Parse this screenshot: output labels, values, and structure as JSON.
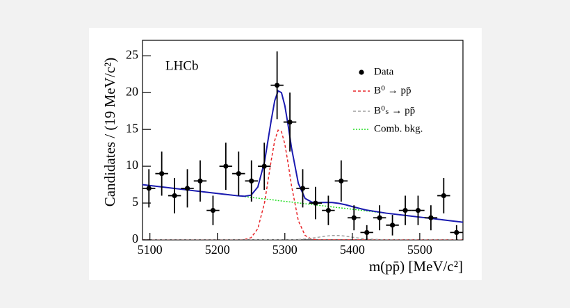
{
  "chart_data": {
    "type": "errorbar",
    "annotation": "LHCb",
    "xlabel": "m(pp̄) [MeV/c²]",
    "ylabel": "Candidates / (19 MeV/c²)",
    "xlim": [
      5089,
      5564
    ],
    "ylim": [
      0,
      27.1
    ],
    "xticks": [
      5100,
      5200,
      5300,
      5400,
      5500
    ],
    "yticks": [
      0,
      5,
      10,
      15,
      20,
      25
    ],
    "series": [
      {
        "name": "Data",
        "color": "#000000",
        "kind": "points",
        "x": [
          5098.5,
          5117.5,
          5136.5,
          5155.5,
          5174.5,
          5193.5,
          5212.5,
          5231.5,
          5250.5,
          5269.5,
          5288.5,
          5307.5,
          5326.5,
          5345.5,
          5364.5,
          5383.5,
          5402.5,
          5421.5,
          5440.5,
          5459.5,
          5478.5,
          5497.5,
          5516.5,
          5535.5,
          5554.5
        ],
        "values": [
          7,
          9,
          6,
          7,
          8,
          4,
          10,
          9,
          8,
          10,
          21,
          16,
          7,
          5,
          4,
          8,
          3,
          1,
          3,
          2,
          4,
          4,
          3,
          6,
          1
        ],
        "errors": [
          2.6,
          3,
          2.4,
          2.6,
          2.8,
          2,
          3.2,
          3,
          2.8,
          3.2,
          4.6,
          4,
          2.6,
          2.2,
          2,
          2.8,
          1.7,
          1,
          1.7,
          1.4,
          2,
          2,
          1.7,
          2.4,
          1
        ]
      },
      {
        "name": "B⁰ → pp̄",
        "color": "#e8262a",
        "kind": "curve",
        "dash": "dashed",
        "x": [
          5089,
          5120,
          5150,
          5180,
          5210,
          5230,
          5240,
          5250,
          5260,
          5270,
          5280,
          5285,
          5290,
          5295,
          5300,
          5305,
          5310,
          5320,
          5330,
          5340,
          5350,
          5360,
          5370,
          5380,
          5390,
          5400,
          5420,
          5450,
          5480,
          5510,
          5540,
          5564
        ],
        "values": [
          0,
          0,
          0,
          0,
          0,
          0,
          0.04,
          0.3,
          1.53,
          5.1,
          10.9,
          13.5,
          14.9,
          14.7,
          13.0,
          10.3,
          7.3,
          2.6,
          0.6,
          0.09,
          0,
          0,
          0,
          0,
          0,
          0,
          0,
          0,
          0,
          0,
          0,
          0
        ]
      },
      {
        "name": "B⁰ₛ → pp̄",
        "color": "#a0a0a0",
        "kind": "curve",
        "dash": "dashed",
        "x": [
          5089,
          5120,
          5150,
          5180,
          5210,
          5230,
          5240,
          5250,
          5260,
          5270,
          5280,
          5285,
          5290,
          5295,
          5300,
          5305,
          5310,
          5320,
          5330,
          5340,
          5350,
          5360,
          5370,
          5380,
          5390,
          5400,
          5420,
          5450,
          5480,
          5510,
          5540,
          5564
        ],
        "values": [
          0,
          0,
          0,
          0,
          0,
          0,
          0,
          0,
          0,
          0,
          0,
          0,
          0,
          0,
          0,
          0,
          0,
          0.05,
          0.12,
          0.23,
          0.36,
          0.5,
          0.59,
          0.59,
          0.5,
          0.36,
          0.12,
          0.01,
          0,
          0,
          0,
          0
        ]
      },
      {
        "name": "Comb. bkg.",
        "color": "#22dd22",
        "kind": "curve",
        "dash": "dotted",
        "x": [
          5089,
          5120,
          5150,
          5180,
          5210,
          5230,
          5240,
          5250,
          5260,
          5270,
          5280,
          5285,
          5290,
          5295,
          5300,
          5305,
          5310,
          5320,
          5330,
          5340,
          5350,
          5360,
          5370,
          5380,
          5390,
          5400,
          5420,
          5450,
          5480,
          5510,
          5540,
          5564
        ],
        "values": [
          7.5,
          7.17,
          6.84,
          6.52,
          6.2,
          5.99,
          5.88,
          5.77,
          5.66,
          5.56,
          5.45,
          5.4,
          5.34,
          5.29,
          5.23,
          5.18,
          5.13,
          5.02,
          4.91,
          4.8,
          4.7,
          4.59,
          4.48,
          4.37,
          4.27,
          4.16,
          3.94,
          3.62,
          3.3,
          2.98,
          2.66,
          2.4
        ]
      },
      {
        "color": "#1a1ab0",
        "kind": "curve",
        "dash": "solid",
        "x": [
          5089,
          5120,
          5150,
          5180,
          5210,
          5230,
          5240,
          5250,
          5260,
          5270,
          5280,
          5285,
          5290,
          5295,
          5300,
          5305,
          5310,
          5320,
          5330,
          5340,
          5350,
          5360,
          5370,
          5380,
          5390,
          5400,
          5420,
          5450,
          5480,
          5510,
          5540,
          5564
        ],
        "values": [
          7.5,
          7.17,
          6.84,
          6.52,
          6.2,
          5.99,
          5.92,
          6.07,
          7.19,
          10.66,
          16.35,
          18.9,
          20.24,
          19.99,
          18.23,
          15.48,
          12.43,
          7.67,
          5.63,
          5.12,
          5.06,
          5.09,
          5.07,
          4.96,
          4.77,
          4.52,
          4.06,
          3.63,
          3.3,
          2.98,
          2.66,
          2.4
        ]
      }
    ]
  }
}
